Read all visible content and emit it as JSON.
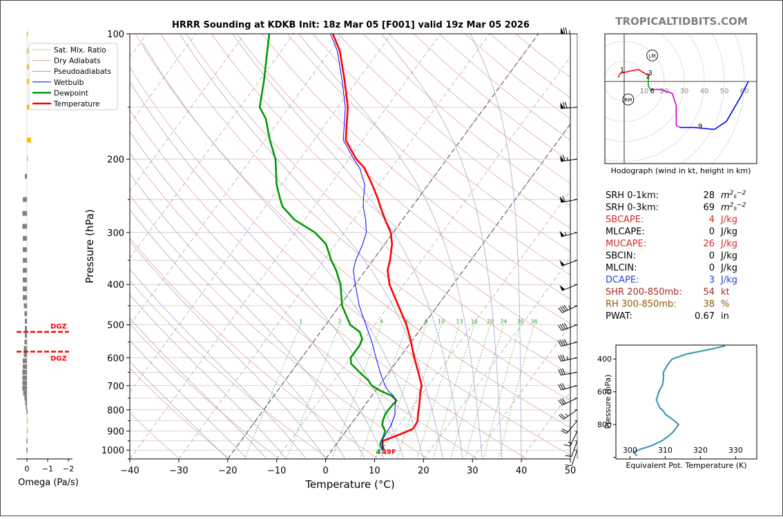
{
  "chart_data": [
    {
      "type": "line",
      "title": "HRRR Sounding at KDKB Init: 18z Mar 05 [F001] valid 19z Mar 05 2026",
      "xlabel": "Temperature (°C)",
      "ylabel": "Pressure (hPa)",
      "xlim": [
        -40,
        50
      ],
      "ylim": [
        1050,
        100
      ],
      "y_scale": "log",
      "skew": "skew-T",
      "x_ticks": [
        "−40",
        "−30",
        "−20",
        "−10",
        "0",
        "10",
        "20",
        "30",
        "40",
        "50"
      ],
      "y_ticks": [
        "100",
        "200",
        "300",
        "400",
        "500",
        "600",
        "700",
        "800",
        "900",
        "1000"
      ],
      "legend_position": "upper-left",
      "legend": [
        "Sat. Mix. Ratio",
        "Dry Adiabats",
        "Pseudoadiabats",
        "Wetbulb",
        "Dewpoint",
        "Temperature"
      ],
      "mixing_ratio_labels": [
        "1",
        "2",
        "4",
        "6",
        "8",
        "10",
        "13",
        "16",
        "20",
        "24",
        "30",
        "36"
      ],
      "surface_temperature_label": "49F",
      "surface_dewpoint_label": "4",
      "series": [
        {
          "name": "Temperature",
          "color": "#ff0000",
          "p": [
            1000,
            970,
            950,
            930,
            910,
            890,
            870,
            850,
            820,
            790,
            760,
            730,
            700,
            650,
            600,
            550,
            500,
            450,
            400,
            370,
            350,
            320,
            300,
            280,
            260,
            250,
            230,
            210,
            200,
            180,
            150,
            130,
            110,
            100
          ],
          "t": [
            10.5,
            9.5,
            9,
            10.5,
            12,
            13.3,
            13.3,
            13.1,
            12.2,
            11.4,
            10.5,
            9.5,
            8.7,
            6.0,
            3.0,
            0.0,
            -3.5,
            -8.0,
            -13.0,
            -15.5,
            -16.5,
            -18.5,
            -20.5,
            -23.5,
            -26.5,
            -28.0,
            -31.5,
            -35.5,
            -38.5,
            -43.5,
            -48.0,
            -52.5,
            -58.0,
            -62.0
          ]
        },
        {
          "name": "Dewpoint",
          "color": "#009900",
          "p": [
            1000,
            970,
            950,
            930,
            900,
            870,
            850,
            820,
            800,
            780,
            760,
            740,
            720,
            700,
            680,
            650,
            620,
            600,
            580,
            560,
            540,
            520,
            500,
            450,
            400,
            370,
            350,
            320,
            300,
            280,
            260,
            250,
            230,
            200,
            180,
            160,
            150,
            130,
            100
          ],
          "t": [
            10.3,
            9.0,
            8.7,
            8.5,
            8.0,
            6.5,
            6.0,
            5.5,
            5.5,
            5.6,
            5.8,
            4.0,
            1.0,
            -1.5,
            -3.0,
            -6.0,
            -9.0,
            -10.0,
            -10.0,
            -10.0,
            -10.5,
            -12.0,
            -15.0,
            -19.5,
            -23.0,
            -26.0,
            -28.5,
            -32.0,
            -36.0,
            -42.0,
            -46.5,
            -48.0,
            -51.0,
            -55.0,
            -59.0,
            -63.0,
            -66.0,
            -69.0,
            -75.0
          ]
        },
        {
          "name": "Wetbulb",
          "color": "#0000ff",
          "p": [
            1000,
            950,
            900,
            870,
            850,
            820,
            800,
            780,
            760,
            740,
            720,
            700,
            650,
            600,
            550,
            500,
            450,
            400,
            370,
            350,
            320,
            300,
            280,
            260,
            250,
            230,
            210,
            200,
            180,
            150,
            130,
            110,
            100
          ],
          "t": [
            10.4,
            8.8,
            8.5,
            8.3,
            8.0,
            7.5,
            6.8,
            6.2,
            5.6,
            4.4,
            2.6,
            1.2,
            -1.8,
            -4.8,
            -8.0,
            -11.8,
            -16.0,
            -20.0,
            -22.5,
            -23.5,
            -24.5,
            -25.5,
            -27.5,
            -30.0,
            -31.0,
            -33.0,
            -36.5,
            -39.0,
            -44.0,
            -48.5,
            -53.0,
            -58.5,
            -62.5
          ]
        }
      ]
    },
    {
      "type": "bar",
      "xlabel": "Omega (Pa/s)",
      "x_ticks": [
        "0",
        "−1",
        "−2"
      ],
      "xlim": [
        0.3,
        -2.2
      ],
      "dgz_label": "DGZ",
      "dgz_layer": [
        520,
        580
      ],
      "levels": [
        100,
        110,
        120,
        130,
        150,
        180,
        200,
        220,
        250,
        270,
        290,
        310,
        330,
        350,
        370,
        390,
        410,
        430,
        450,
        470,
        490,
        510,
        530,
        550,
        570,
        590,
        610,
        630,
        650,
        670,
        690,
        710,
        730,
        750,
        770,
        790,
        810,
        850,
        900,
        950,
        1000
      ],
      "values": [
        -0.03,
        -0.06,
        -0.08,
        -0.1,
        -0.12,
        -0.2,
        -0.05,
        0.1,
        0.2,
        0.22,
        0.22,
        0.2,
        0.2,
        0.2,
        0.2,
        0.2,
        0.2,
        0.2,
        0.15,
        0.12,
        0.1,
        0.1,
        0.1,
        0.12,
        0.15,
        0.15,
        0.2,
        0.2,
        0.22,
        0.22,
        0.22,
        0.22,
        0.18,
        0.12,
        0.08,
        0.05,
        0.02,
        -0.01,
        -0.02,
        0.02,
        0.02
      ],
      "positive_color": "#808080",
      "negative_color": "#ffbf00"
    },
    {
      "type": "line",
      "caption": "Hodograph (wind in kt, height in km)",
      "ring_labels": [
        "10",
        "20",
        "30",
        "40",
        "50",
        "60"
      ],
      "markers": [
        "LM",
        "RM"
      ],
      "storm_motion": {
        "LM": [
          14,
          13
        ],
        "RM": [
          2,
          -9
        ]
      },
      "height_labels": [
        "1",
        "3",
        "2",
        "6",
        "9"
      ],
      "segments": [
        {
          "color": "#ff0000",
          "points": [
            [
              -3,
              2
            ],
            [
              -2,
              4
            ],
            [
              2,
              5
            ],
            [
              7,
              6
            ],
            [
              12,
              3
            ]
          ]
        },
        {
          "color": "#00aa00",
          "points": [
            [
              12,
              3
            ],
            [
              12,
              -2
            ],
            [
              13,
              -4
            ]
          ]
        },
        {
          "color": "#cc00cc",
          "points": [
            [
              13,
              -4
            ],
            [
              18,
              -4
            ],
            [
              24,
              -6
            ],
            [
              26,
              -12
            ],
            [
              26,
              -22
            ],
            [
              28,
              -23
            ]
          ]
        },
        {
          "color": "#0000ff",
          "points": [
            [
              28,
              -23
            ],
            [
              35,
              -23
            ],
            [
              45,
              -24
            ],
            [
              51,
              -20
            ],
            [
              58,
              -8
            ],
            [
              62,
              0
            ]
          ]
        }
      ]
    },
    {
      "type": "line",
      "xlabel": "Equivalent Pot. Temperature (K)",
      "ylabel": "Pressure (hPa)",
      "xlim": [
        296,
        336
      ],
      "ylim": [
        1010,
        315
      ],
      "x_ticks": [
        "300",
        "310",
        "320",
        "330"
      ],
      "y_ticks": [
        "400",
        "600",
        "800"
      ],
      "series": [
        {
          "name": "Theta-E",
          "color": "#3b9ab2",
          "p": [
            990,
            970,
            950,
            930,
            900,
            870,
            840,
            800,
            770,
            740,
            710,
            700,
            650,
            600,
            560,
            520,
            480,
            440,
            400,
            370,
            340,
            320
          ],
          "t": [
            302,
            301,
            303,
            306,
            309,
            311,
            312.5,
            313.8,
            312.2,
            310.2,
            309.2,
            308.5,
            307.5,
            308.2,
            309.2,
            309.5,
            309.5,
            310.5,
            312.0,
            316.0,
            323.0,
            327.0
          ]
        }
      ]
    }
  ],
  "site_label": "TROPICALTIDBITS.COM",
  "indices": [
    {
      "label": "SRH 0-1km:",
      "value": "28",
      "unit_html": "m<sup>2</sup>s<sup>−2</sup>",
      "unit": "m2s-2",
      "color": "#000000"
    },
    {
      "label": "SRH 0-3km:",
      "value": "69",
      "unit": "m2s-2",
      "unit_html": "m<sup>2</sup>s<sup>−2</sup>",
      "color": "#000000"
    },
    {
      "label": "SBCAPE:",
      "value": "4",
      "unit": "J/kg",
      "color": "#d62728"
    },
    {
      "label": "MLCAPE:",
      "value": "0",
      "unit": "J/kg",
      "color": "#000000"
    },
    {
      "label": "MUCAPE:",
      "value": "26",
      "unit": "J/kg",
      "color": "#d62728"
    },
    {
      "label": "SBCIN:",
      "value": "0",
      "unit": "J/kg",
      "color": "#000000"
    },
    {
      "label": "MLCIN:",
      "value": "0",
      "unit": "J/kg",
      "color": "#000000"
    },
    {
      "label": "DCAPE:",
      "value": "3",
      "unit": "J/kg",
      "color": "#1f3fd6"
    },
    {
      "label": "SHR 200-850mb:",
      "value": "54",
      "unit": "kt",
      "color": "#a52a2a"
    },
    {
      "label": "RH 300-850mb:",
      "value": "38",
      "unit": "%",
      "color": "#8b5a00"
    },
    {
      "label": "PWAT:",
      "value": "0.67",
      "unit": "in",
      "color": "#000000"
    }
  ],
  "wind_barbs": {
    "levels": [
      100,
      150,
      200,
      250,
      300,
      350,
      400,
      450,
      500,
      550,
      600,
      650,
      700,
      750,
      800,
      850,
      900,
      950,
      1000
    ],
    "speed_kt": [
      75,
      70,
      65,
      60,
      55,
      50,
      48,
      45,
      40,
      38,
      35,
      32,
      30,
      28,
      25,
      20,
      15,
      12,
      10
    ],
    "direction_deg": [
      270,
      265,
      262,
      260,
      255,
      250,
      248,
      245,
      250,
      255,
      258,
      260,
      255,
      245,
      235,
      220,
      205,
      200,
      200
    ]
  }
}
